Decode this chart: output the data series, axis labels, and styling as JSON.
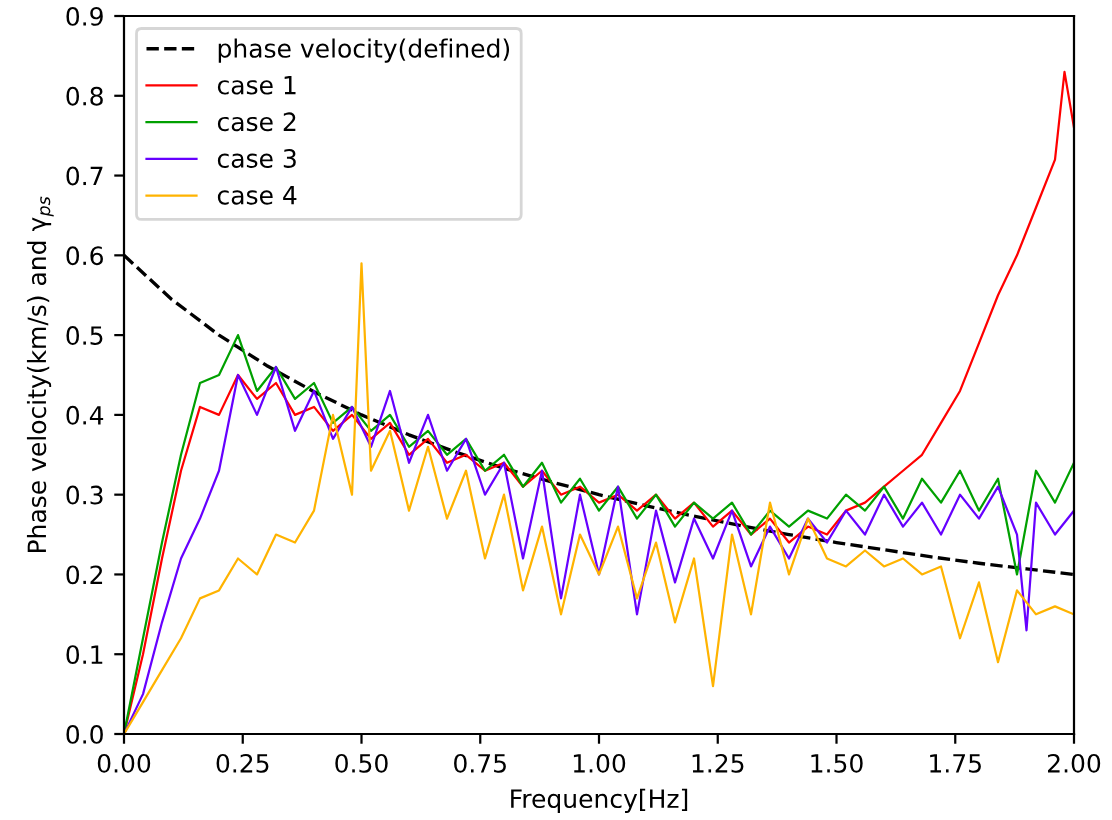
{
  "chart_data": {
    "type": "line",
    "xlabel": "Frequency[Hz]",
    "ylabel": "Phase velocity(km/s) and γ$_{ps}$",
    "legend": "top left",
    "grid": false,
    "xlim": [
      0,
      2.0
    ],
    "xticks": [
      {
        "value": 0,
        "label": "0.00"
      },
      {
        "value": 0.25,
        "label": "0.25"
      },
      {
        "value": 0.5,
        "label": "0.50"
      },
      {
        "value": 0.75,
        "label": "0.75"
      },
      {
        "value": 1.0,
        "label": "1.00"
      },
      {
        "value": 1.25,
        "label": "1.25"
      },
      {
        "value": 1.5,
        "label": "1.50"
      },
      {
        "value": 1.75,
        "label": "1.75"
      },
      {
        "value": 2.0,
        "label": "2.00"
      }
    ],
    "ylim": [
      0,
      0.9
    ],
    "yticks": [
      {
        "value": 0,
        "label": "0.0"
      },
      {
        "value": 0.1,
        "label": "0.1"
      },
      {
        "value": 0.2,
        "label": "0.2"
      },
      {
        "value": 0.3,
        "label": "0.3"
      },
      {
        "value": 0.4,
        "label": "0.4"
      },
      {
        "value": 0.5,
        "label": "0.5"
      },
      {
        "value": 0.6,
        "label": "0.6"
      },
      {
        "value": 0.7,
        "label": "0.7"
      },
      {
        "value": 0.8,
        "label": "0.8"
      },
      {
        "value": 0.9,
        "label": "0.9"
      }
    ],
    "series": [
      {
        "name": "phase velocity(defined)",
        "color": "#000000",
        "line_style": "dashed",
        "x": [
          0,
          0.1,
          0.2,
          0.3,
          0.4,
          0.5,
          0.6,
          0.7,
          0.8,
          0.9,
          1.0,
          1.1,
          1.2,
          1.3,
          1.4,
          1.5,
          1.6,
          1.7,
          1.8,
          1.9,
          2.0
        ],
        "values": [
          0.6,
          0.545,
          0.5,
          0.462,
          0.429,
          0.4,
          0.375,
          0.353,
          0.333,
          0.316,
          0.3,
          0.286,
          0.273,
          0.261,
          0.25,
          0.24,
          0.231,
          0.222,
          0.214,
          0.207,
          0.2
        ]
      },
      {
        "name": "case 1",
        "color": "#ff0000",
        "x": [
          0,
          0.04,
          0.08,
          0.12,
          0.16,
          0.2,
          0.24,
          0.28,
          0.32,
          0.36,
          0.4,
          0.44,
          0.48,
          0.52,
          0.56,
          0.6,
          0.64,
          0.68,
          0.72,
          0.76,
          0.8,
          0.84,
          0.88,
          0.92,
          0.96,
          1.0,
          1.04,
          1.08,
          1.12,
          1.16,
          1.2,
          1.24,
          1.28,
          1.32,
          1.36,
          1.4,
          1.44,
          1.48,
          1.52,
          1.56,
          1.6,
          1.64,
          1.68,
          1.72,
          1.76,
          1.8,
          1.84,
          1.88,
          1.92,
          1.96,
          1.98,
          2.0
        ],
        "values": [
          0,
          0.1,
          0.22,
          0.33,
          0.41,
          0.4,
          0.45,
          0.42,
          0.44,
          0.4,
          0.41,
          0.38,
          0.4,
          0.37,
          0.39,
          0.35,
          0.37,
          0.34,
          0.35,
          0.33,
          0.34,
          0.31,
          0.33,
          0.3,
          0.31,
          0.29,
          0.3,
          0.28,
          0.3,
          0.27,
          0.29,
          0.26,
          0.28,
          0.25,
          0.27,
          0.24,
          0.26,
          0.25,
          0.28,
          0.29,
          0.31,
          0.33,
          0.35,
          0.39,
          0.43,
          0.49,
          0.55,
          0.6,
          0.66,
          0.72,
          0.83,
          0.76
        ]
      },
      {
        "name": "case 2",
        "color": "#00a000",
        "x": [
          0,
          0.04,
          0.08,
          0.12,
          0.16,
          0.2,
          0.24,
          0.28,
          0.32,
          0.36,
          0.4,
          0.44,
          0.48,
          0.52,
          0.56,
          0.6,
          0.64,
          0.68,
          0.72,
          0.76,
          0.8,
          0.84,
          0.88,
          0.92,
          0.96,
          1.0,
          1.04,
          1.08,
          1.12,
          1.16,
          1.2,
          1.24,
          1.28,
          1.32,
          1.36,
          1.4,
          1.44,
          1.48,
          1.52,
          1.56,
          1.6,
          1.64,
          1.68,
          1.72,
          1.76,
          1.8,
          1.84,
          1.88,
          1.92,
          1.96,
          2.0
        ],
        "values": [
          0,
          0.12,
          0.24,
          0.35,
          0.44,
          0.45,
          0.5,
          0.43,
          0.46,
          0.42,
          0.44,
          0.39,
          0.41,
          0.38,
          0.4,
          0.36,
          0.38,
          0.35,
          0.37,
          0.33,
          0.35,
          0.31,
          0.34,
          0.29,
          0.32,
          0.28,
          0.31,
          0.27,
          0.3,
          0.26,
          0.29,
          0.27,
          0.29,
          0.25,
          0.28,
          0.26,
          0.28,
          0.27,
          0.3,
          0.28,
          0.31,
          0.27,
          0.32,
          0.29,
          0.33,
          0.28,
          0.32,
          0.2,
          0.33,
          0.29,
          0.34
        ]
      },
      {
        "name": "case 3",
        "color": "#6600ff",
        "x": [
          0,
          0.04,
          0.08,
          0.12,
          0.16,
          0.2,
          0.24,
          0.28,
          0.32,
          0.36,
          0.4,
          0.44,
          0.48,
          0.52,
          0.56,
          0.6,
          0.64,
          0.68,
          0.72,
          0.76,
          0.8,
          0.84,
          0.88,
          0.92,
          0.96,
          1.0,
          1.04,
          1.08,
          1.12,
          1.16,
          1.2,
          1.24,
          1.28,
          1.32,
          1.36,
          1.4,
          1.44,
          1.48,
          1.52,
          1.56,
          1.6,
          1.64,
          1.68,
          1.72,
          1.76,
          1.8,
          1.84,
          1.88,
          1.9,
          1.92,
          1.96,
          2.0
        ],
        "values": [
          0,
          0.05,
          0.14,
          0.22,
          0.27,
          0.33,
          0.45,
          0.4,
          0.46,
          0.38,
          0.43,
          0.37,
          0.41,
          0.36,
          0.43,
          0.34,
          0.4,
          0.33,
          0.37,
          0.3,
          0.34,
          0.22,
          0.33,
          0.17,
          0.3,
          0.2,
          0.31,
          0.15,
          0.28,
          0.19,
          0.27,
          0.22,
          0.28,
          0.21,
          0.26,
          0.22,
          0.27,
          0.24,
          0.28,
          0.25,
          0.3,
          0.26,
          0.29,
          0.25,
          0.3,
          0.27,
          0.31,
          0.25,
          0.13,
          0.29,
          0.25,
          0.28
        ]
      },
      {
        "name": "case 4",
        "color": "#ffb300",
        "x": [
          0,
          0.04,
          0.08,
          0.12,
          0.16,
          0.2,
          0.24,
          0.28,
          0.32,
          0.36,
          0.4,
          0.44,
          0.48,
          0.5,
          0.52,
          0.56,
          0.6,
          0.64,
          0.68,
          0.72,
          0.76,
          0.8,
          0.84,
          0.88,
          0.92,
          0.96,
          1.0,
          1.04,
          1.08,
          1.12,
          1.16,
          1.2,
          1.24,
          1.28,
          1.32,
          1.36,
          1.4,
          1.44,
          1.48,
          1.52,
          1.56,
          1.6,
          1.64,
          1.68,
          1.72,
          1.76,
          1.8,
          1.84,
          1.88,
          1.92,
          1.96,
          2.0
        ],
        "values": [
          0,
          0.04,
          0.08,
          0.12,
          0.17,
          0.18,
          0.22,
          0.2,
          0.25,
          0.24,
          0.28,
          0.4,
          0.3,
          0.59,
          0.33,
          0.38,
          0.28,
          0.36,
          0.27,
          0.33,
          0.22,
          0.3,
          0.18,
          0.26,
          0.15,
          0.25,
          0.2,
          0.26,
          0.17,
          0.24,
          0.14,
          0.22,
          0.06,
          0.25,
          0.15,
          0.29,
          0.2,
          0.27,
          0.22,
          0.21,
          0.23,
          0.21,
          0.22,
          0.2,
          0.21,
          0.12,
          0.19,
          0.09,
          0.18,
          0.15,
          0.16,
          0.15
        ]
      }
    ]
  }
}
